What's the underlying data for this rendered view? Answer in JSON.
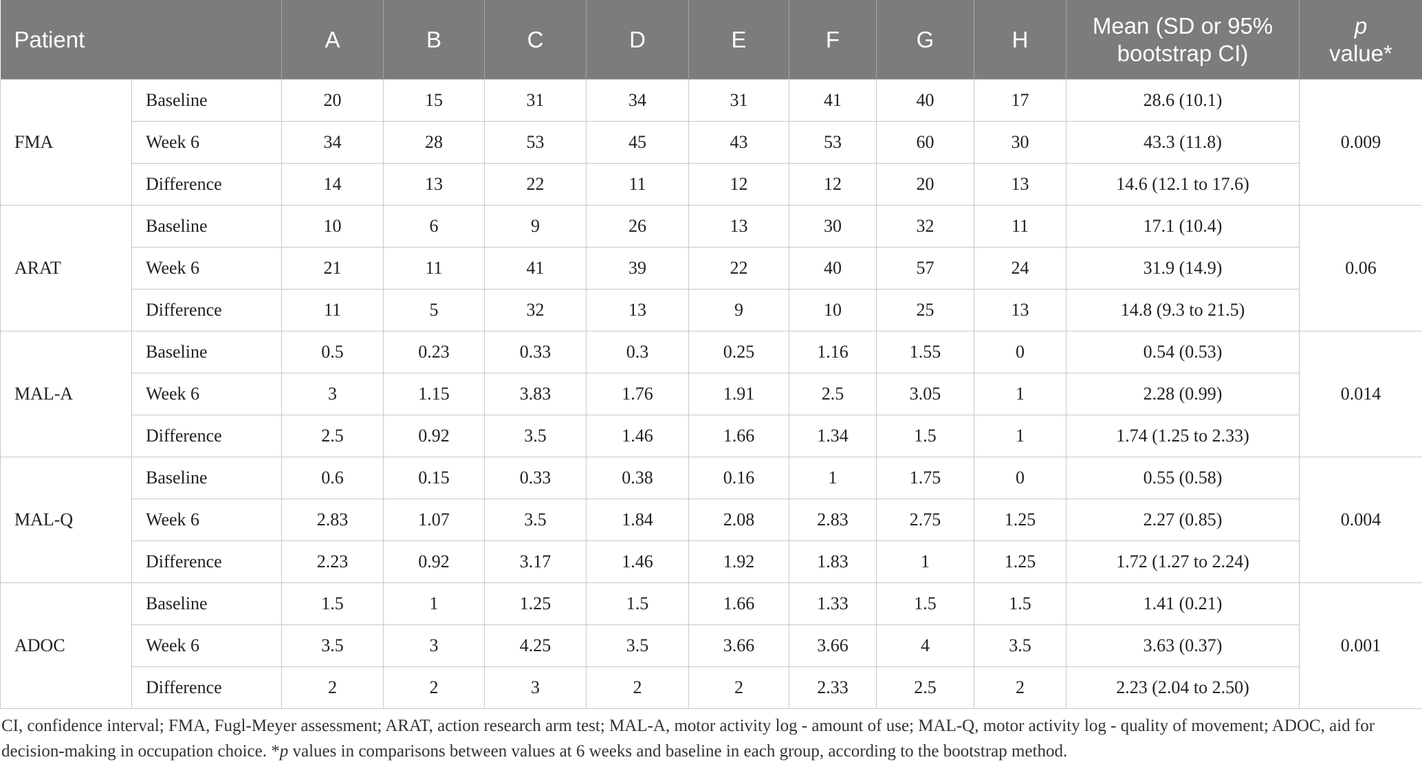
{
  "header": [
    "Patient",
    "A",
    "B",
    "C",
    "D",
    "E",
    "F",
    "G",
    "H",
    "Mean (SD or 95% bootstrap CI)",
    {
      "italic": "p",
      "text": "value*"
    }
  ],
  "groups": [
    {
      "label": "FMA",
      "p": "0.009",
      "rows": [
        {
          "label": "Baseline",
          "values": [
            "20",
            "15",
            "31",
            "34",
            "31",
            "41",
            "40",
            "17"
          ],
          "mean": "28.6 (10.1)"
        },
        {
          "label": "Week 6",
          "values": [
            "34",
            "28",
            "53",
            "45",
            "43",
            "53",
            "60",
            "30"
          ],
          "mean": "43.3 (11.8)"
        },
        {
          "label": "Difference",
          "values": [
            "14",
            "13",
            "22",
            "11",
            "12",
            "12",
            "20",
            "13"
          ],
          "mean": "14.6 (12.1 to 17.6)"
        }
      ]
    },
    {
      "label": "ARAT",
      "p": "0.06",
      "rows": [
        {
          "label": "Baseline",
          "values": [
            "10",
            "6",
            "9",
            "26",
            "13",
            "30",
            "32",
            "11"
          ],
          "mean": "17.1 (10.4)"
        },
        {
          "label": "Week 6",
          "values": [
            "21",
            "11",
            "41",
            "39",
            "22",
            "40",
            "57",
            "24"
          ],
          "mean": "31.9 (14.9)"
        },
        {
          "label": "Difference",
          "values": [
            "11",
            "5",
            "32",
            "13",
            "9",
            "10",
            "25",
            "13"
          ],
          "mean": "14.8 (9.3 to 21.5)"
        }
      ]
    },
    {
      "label": "MAL-A",
      "p": "0.014",
      "rows": [
        {
          "label": "Baseline",
          "values": [
            "0.5",
            "0.23",
            "0.33",
            "0.3",
            "0.25",
            "1.16",
            "1.55",
            "0"
          ],
          "mean": "0.54 (0.53)"
        },
        {
          "label": "Week 6",
          "values": [
            "3",
            "1.15",
            "3.83",
            "1.76",
            "1.91",
            "2.5",
            "3.05",
            "1"
          ],
          "mean": "2.28 (0.99)"
        },
        {
          "label": "Difference",
          "values": [
            "2.5",
            "0.92",
            "3.5",
            "1.46",
            "1.66",
            "1.34",
            "1.5",
            "1"
          ],
          "mean": "1.74 (1.25 to 2.33)"
        }
      ]
    },
    {
      "label": "MAL-Q",
      "p": "0.004",
      "rows": [
        {
          "label": "Baseline",
          "values": [
            "0.6",
            "0.15",
            "0.33",
            "0.38",
            "0.16",
            "1",
            "1.75",
            "0"
          ],
          "mean": "0.55 (0.58)"
        },
        {
          "label": "Week 6",
          "values": [
            "2.83",
            "1.07",
            "3.5",
            "1.84",
            "2.08",
            "2.83",
            "2.75",
            "1.25"
          ],
          "mean": "2.27 (0.85)"
        },
        {
          "label": "Difference",
          "values": [
            "2.23",
            "0.92",
            "3.17",
            "1.46",
            "1.92",
            "1.83",
            "1",
            "1.25"
          ],
          "mean": "1.72 (1.27 to 2.24)"
        }
      ]
    },
    {
      "label": "ADOC",
      "p": "0.001",
      "rows": [
        {
          "label": "Baseline",
          "values": [
            "1.5",
            "1",
            "1.25",
            "1.5",
            "1.66",
            "1.33",
            "1.5",
            "1.5"
          ],
          "mean": "1.41 (0.21)"
        },
        {
          "label": "Week 6",
          "values": [
            "3.5",
            "3",
            "4.25",
            "3.5",
            "3.66",
            "3.66",
            "4",
            "3.5"
          ],
          "mean": "3.63 (0.37)"
        },
        {
          "label": "Difference",
          "values": [
            "2",
            "2",
            "3",
            "2",
            "2",
            "2.33",
            "2.5",
            "2"
          ],
          "mean": "2.23 (2.04 to 2.50)"
        }
      ]
    }
  ],
  "footnote": {
    "before": "CI, confidence interval; FMA, Fugl-Meyer assessment; ARAT, action research arm test; MAL-A, motor activity log - amount of use; MAL-Q, motor activity log - quality of movement; ADOC, aid for decision-making in occupation choice. *",
    "italic": "p",
    "after": " values in comparisons between values at 6 weeks and baseline in each group, according to the bootstrap method."
  }
}
